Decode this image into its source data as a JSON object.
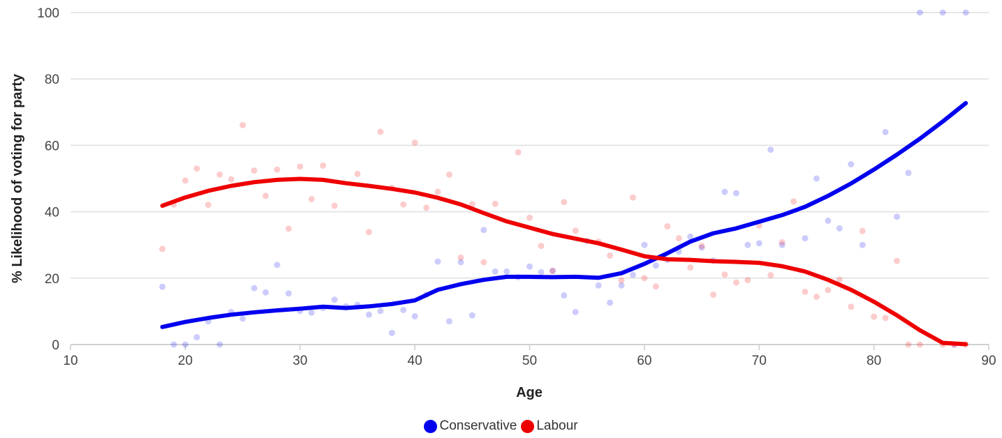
{
  "chart_data": {
    "type": "scatter",
    "title": "",
    "xlabel": "Age",
    "ylabel": "% Likelihood of voting for party",
    "xlim": [
      10,
      90
    ],
    "ylim": [
      0,
      100
    ],
    "x_ticks": [
      10,
      20,
      30,
      40,
      50,
      60,
      70,
      80,
      90
    ],
    "y_ticks": [
      0,
      20,
      40,
      60,
      80,
      100
    ],
    "grid": "horizontal",
    "legend_position": "bottom-center",
    "series": [
      {
        "name": "Conservative",
        "color": "#0000ee",
        "points": [
          [
            18,
            17.4
          ],
          [
            19,
            0
          ],
          [
            20,
            0
          ],
          [
            21,
            2.2
          ],
          [
            22,
            7
          ],
          [
            23,
            0
          ],
          [
            24,
            9.8
          ],
          [
            25,
            7.8
          ],
          [
            26,
            17
          ],
          [
            27,
            15.7
          ],
          [
            28,
            24
          ],
          [
            29,
            15.4
          ],
          [
            30,
            10.1
          ],
          [
            31,
            9.6
          ],
          [
            32,
            11
          ],
          [
            33,
            13.5
          ],
          [
            34,
            11.5
          ],
          [
            35,
            12
          ],
          [
            36,
            9
          ],
          [
            37,
            10.1
          ],
          [
            38,
            3.5
          ],
          [
            39,
            10.4
          ],
          [
            40,
            8.5
          ],
          [
            41,
            15
          ],
          [
            42,
            25
          ],
          [
            43,
            7
          ],
          [
            44,
            24.8
          ],
          [
            45,
            8.8
          ],
          [
            46,
            34.5
          ],
          [
            47,
            22
          ],
          [
            48,
            22
          ],
          [
            49,
            20.3
          ],
          [
            50,
            23.5
          ],
          [
            51,
            21.8
          ],
          [
            52,
            22.2
          ],
          [
            53,
            14.8
          ],
          [
            54,
            9.8
          ],
          [
            55,
            31.2
          ],
          [
            56,
            17.8
          ],
          [
            57,
            12.6
          ],
          [
            58,
            17.8
          ],
          [
            59,
            21
          ],
          [
            60,
            30
          ],
          [
            61,
            23.8
          ],
          [
            62,
            25.5
          ],
          [
            63,
            28
          ],
          [
            64,
            32.5
          ],
          [
            65,
            29.2
          ],
          [
            66,
            25.3
          ],
          [
            67,
            46
          ],
          [
            68,
            45.6
          ],
          [
            69,
            30
          ],
          [
            70,
            30.5
          ],
          [
            71,
            58.7
          ],
          [
            72,
            30
          ],
          [
            74,
            32
          ],
          [
            75,
            50
          ],
          [
            76,
            37.3
          ],
          [
            77,
            35
          ],
          [
            78,
            54.3
          ],
          [
            79,
            30
          ],
          [
            81,
            64
          ],
          [
            82,
            38.5
          ],
          [
            83,
            51.7
          ],
          [
            84,
            100
          ],
          [
            86,
            100
          ],
          [
            87,
            0
          ],
          [
            88,
            100
          ]
        ],
        "trend": [
          [
            18,
            5.3
          ],
          [
            20,
            6.8
          ],
          [
            22,
            8
          ],
          [
            24,
            9
          ],
          [
            26,
            9.7
          ],
          [
            28,
            10.3
          ],
          [
            30,
            10.8
          ],
          [
            32,
            11.4
          ],
          [
            34,
            11
          ],
          [
            36,
            11.5
          ],
          [
            38,
            12.2
          ],
          [
            40,
            13.3
          ],
          [
            42,
            16.5
          ],
          [
            44,
            18.2
          ],
          [
            46,
            19.5
          ],
          [
            48,
            20.4
          ],
          [
            50,
            20.4
          ],
          [
            52,
            20.3
          ],
          [
            54,
            20.4
          ],
          [
            56,
            20.1
          ],
          [
            58,
            21.5
          ],
          [
            60,
            24.3
          ],
          [
            62,
            27.5
          ],
          [
            64,
            31
          ],
          [
            66,
            33.5
          ],
          [
            68,
            35
          ],
          [
            70,
            37
          ],
          [
            72,
            39
          ],
          [
            74,
            41.5
          ],
          [
            76,
            44.8
          ],
          [
            78,
            48.5
          ],
          [
            80,
            52.7
          ],
          [
            82,
            57.2
          ],
          [
            84,
            62
          ],
          [
            86,
            67.2
          ],
          [
            88,
            72.7
          ]
        ]
      },
      {
        "name": "Labour",
        "color": "#ee0000",
        "points": [
          [
            18,
            28.8
          ],
          [
            19,
            42.2
          ],
          [
            20,
            49.4
          ],
          [
            21,
            53
          ],
          [
            22,
            42.1
          ],
          [
            23,
            51.2
          ],
          [
            24,
            49.8
          ],
          [
            25,
            66.1
          ],
          [
            26,
            52.4
          ],
          [
            27,
            44.8
          ],
          [
            28,
            52.7
          ],
          [
            29,
            34.9
          ],
          [
            30,
            53.6
          ],
          [
            31,
            43.8
          ],
          [
            32,
            53.9
          ],
          [
            33,
            41.8
          ],
          [
            35,
            51.4
          ],
          [
            36,
            33.9
          ],
          [
            37,
            64.1
          ],
          [
            38,
            47.2
          ],
          [
            39,
            42.2
          ],
          [
            40,
            60.8
          ],
          [
            41,
            41.2
          ],
          [
            42,
            46
          ],
          [
            43,
            51.2
          ],
          [
            44,
            26.2
          ],
          [
            45,
            42.3
          ],
          [
            46,
            24.8
          ],
          [
            47,
            42.4
          ],
          [
            49,
            57.9
          ],
          [
            50,
            38.2
          ],
          [
            51,
            29.7
          ],
          [
            52,
            22.2
          ],
          [
            53,
            42.9
          ],
          [
            54,
            34.3
          ],
          [
            56,
            31
          ],
          [
            57,
            26.8
          ],
          [
            58,
            19.3
          ],
          [
            59,
            44.3
          ],
          [
            60,
            20
          ],
          [
            61,
            17.5
          ],
          [
            62,
            35.6
          ],
          [
            63,
            32
          ],
          [
            64,
            23.2
          ],
          [
            65,
            29.7
          ],
          [
            66,
            15
          ],
          [
            67,
            21.1
          ],
          [
            68,
            18.7
          ],
          [
            69,
            19.4
          ],
          [
            70,
            35.8
          ],
          [
            71,
            20.9
          ],
          [
            72,
            30.8
          ],
          [
            73,
            43.1
          ],
          [
            74,
            15.9
          ],
          [
            75,
            14.4
          ],
          [
            76,
            16.4
          ],
          [
            77,
            19.5
          ],
          [
            78,
            11.4
          ],
          [
            79,
            34.2
          ],
          [
            80,
            8.4
          ],
          [
            81,
            8
          ],
          [
            82,
            25.2
          ],
          [
            83,
            0
          ],
          [
            84,
            0
          ],
          [
            86,
            0
          ],
          [
            87,
            0
          ],
          [
            88,
            0
          ]
        ],
        "trend": [
          [
            18,
            41.8
          ],
          [
            20,
            44.3
          ],
          [
            22,
            46.3
          ],
          [
            24,
            47.8
          ],
          [
            26,
            48.9
          ],
          [
            28,
            49.6
          ],
          [
            30,
            49.9
          ],
          [
            32,
            49.6
          ],
          [
            34,
            48.6
          ],
          [
            36,
            47.8
          ],
          [
            38,
            46.9
          ],
          [
            40,
            45.8
          ],
          [
            42,
            44.2
          ],
          [
            44,
            42.2
          ],
          [
            46,
            39.6
          ],
          [
            48,
            37.1
          ],
          [
            50,
            35.2
          ],
          [
            52,
            33.3
          ],
          [
            54,
            31.9
          ],
          [
            56,
            30.5
          ],
          [
            58,
            28.6
          ],
          [
            60,
            26.6
          ],
          [
            62,
            25.7
          ],
          [
            64,
            25.5
          ],
          [
            66,
            25.1
          ],
          [
            68,
            24.9
          ],
          [
            70,
            24.6
          ],
          [
            72,
            23.6
          ],
          [
            74,
            22
          ],
          [
            76,
            19.5
          ],
          [
            78,
            16.5
          ],
          [
            80,
            12.9
          ],
          [
            82,
            8.8
          ],
          [
            84,
            4.3
          ],
          [
            86,
            0.5
          ],
          [
            88,
            0.1
          ]
        ]
      }
    ]
  }
}
